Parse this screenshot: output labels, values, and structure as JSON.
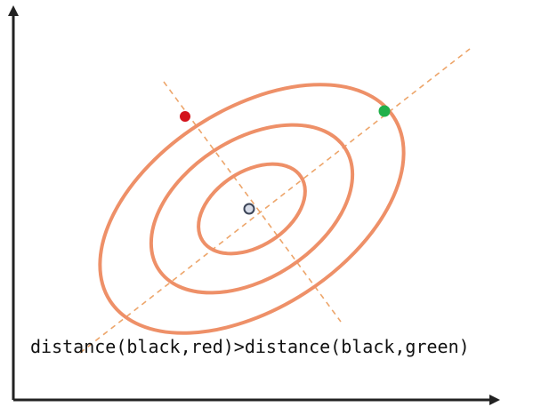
{
  "caption": "distance(black,red)>distance(black,green)",
  "colors": {
    "axis": "#222222",
    "ellipse": "#EE9068",
    "guide_line": "#EDA56A",
    "red_point": "#D3131C",
    "green_point": "#20B04A",
    "center_point_fill": "#D7DCE8",
    "center_point_stroke": "#3B4457"
  },
  "points": [
    {
      "name": "red",
      "color": "#D3131C"
    },
    {
      "name": "green",
      "color": "#20B04A"
    },
    {
      "name": "black",
      "color": "#D7DCE8"
    }
  ]
}
